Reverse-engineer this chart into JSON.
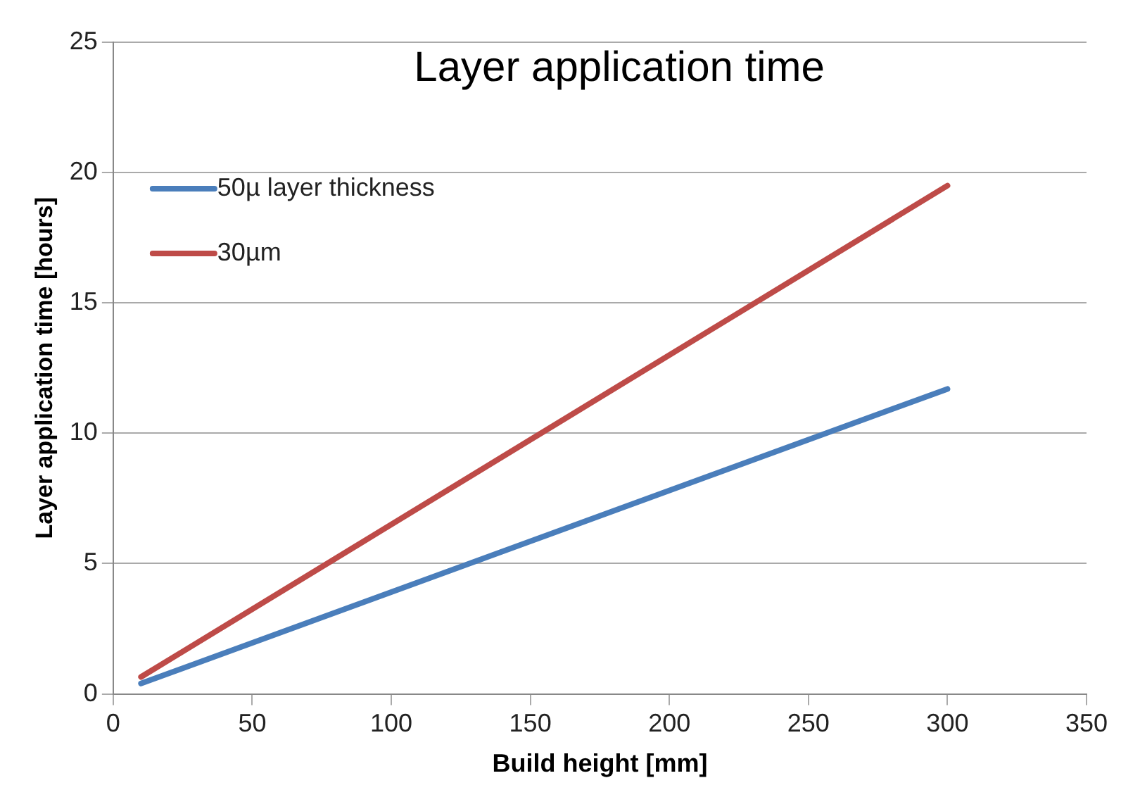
{
  "chart_data": {
    "type": "line",
    "title": "Layer application time",
    "xlabel": "Build height [mm]",
    "ylabel": "Layer application time [hours]",
    "x": [
      10,
      300
    ],
    "series": [
      {
        "name": "50µ layer thickness",
        "color": "#4a7ebb",
        "values": [
          0.4,
          11.7
        ]
      },
      {
        "name": "30µm",
        "color": "#be4b48",
        "values": [
          0.65,
          19.5
        ]
      }
    ],
    "xlim": [
      0,
      350
    ],
    "xticks": [
      0,
      50,
      100,
      150,
      200,
      250,
      300,
      350
    ],
    "ylim": [
      0,
      25
    ],
    "yticks": [
      0,
      5,
      10,
      15,
      20,
      25
    ],
    "grid": "y",
    "legend": "top left",
    "marker": "none",
    "line_style": "solid"
  }
}
